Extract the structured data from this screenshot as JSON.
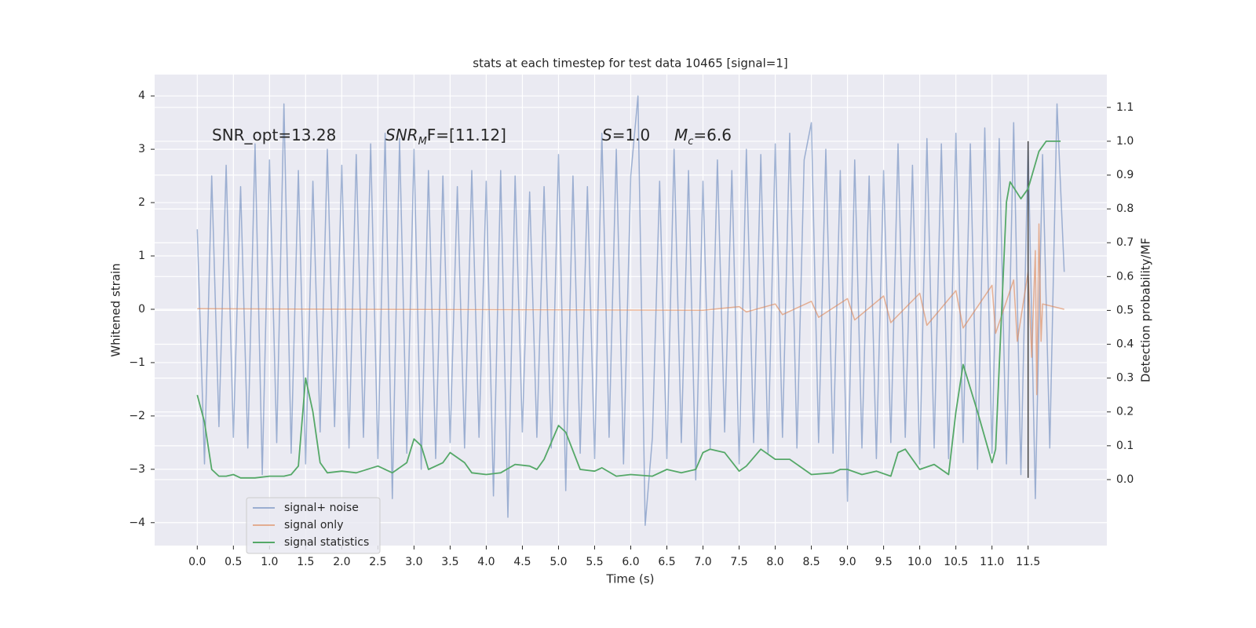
{
  "chart_data": {
    "type": "line",
    "title": "stats at each timestep for test data 10465 [signal=1]",
    "xlabel": "Time (s)",
    "ylabel": "Whitened strain",
    "y2label": "Detection probability/MF",
    "xlim": [
      -0.59,
      12.59
    ],
    "ylim": [
      -4.43,
      4.4
    ],
    "y2lim": [
      -0.195,
      1.197
    ],
    "xticks": [
      {
        "value": 0,
        "label": "0.0"
      },
      0.5,
      {
        "value": 1,
        "label": "1.0"
      },
      1.5,
      {
        "value": 2,
        "label": "2.0"
      },
      2.5,
      {
        "value": 3,
        "label": "3.0"
      },
      3.5,
      {
        "value": 4,
        "label": "4.0"
      },
      4.5,
      {
        "value": 5,
        "label": "5.0"
      },
      5.5,
      {
        "value": 6,
        "label": "6.0"
      },
      6.5,
      {
        "value": 7,
        "label": "7.0"
      },
      7.5,
      {
        "value": 8,
        "label": "8.0"
      },
      8.5,
      {
        "value": 9,
        "label": "9.0"
      },
      9.5,
      {
        "value": 10,
        "label": "10.0"
      },
      10.5,
      {
        "value": 11,
        "label": "11.0"
      },
      11.5
    ],
    "yticks": [
      {
        "value": -4,
        "label": "−4"
      },
      {
        "value": -3,
        "label": "−3"
      },
      {
        "value": -2,
        "label": "−2"
      },
      {
        "value": -1,
        "label": "−1"
      },
      0,
      1,
      2,
      3,
      4
    ],
    "y2ticks": [
      {
        "value": 0,
        "label": "0.0"
      },
      0.1,
      0.2,
      0.3,
      0.4,
      0.5,
      0.6,
      0.7,
      0.8,
      0.9,
      {
        "value": 1,
        "label": "1.0"
      },
      1.1
    ],
    "grid": true,
    "legend": "lower left",
    "background": "#eaeaf2",
    "vline": 11.5,
    "vline_color": "#444444",
    "annotations": [
      {
        "text": "SNR_opt=13.28",
        "italic": false
      },
      {
        "text": "SNR",
        "sub": "M",
        "rest": "F=[11.12]",
        "italic": true
      },
      {
        "text": "S",
        "rest": "=1.0",
        "italic": true
      },
      {
        "text": "M",
        "sub": "c",
        "rest": "=6.6",
        "italic": true
      }
    ],
    "series": [
      {
        "name": "signal+ noise",
        "color": "#4c72b0",
        "alpha": 0.5,
        "x": [
          0.0,
          0.1,
          0.2,
          0.3,
          0.4,
          0.5,
          0.6,
          0.7,
          0.8,
          0.9,
          1.0,
          1.1,
          1.2,
          1.3,
          1.4,
          1.5,
          1.6,
          1.7,
          1.8,
          1.9,
          2.0,
          2.1,
          2.2,
          2.3,
          2.4,
          2.5,
          2.6,
          2.7,
          2.8,
          2.9,
          3.0,
          3.1,
          3.2,
          3.3,
          3.4,
          3.5,
          3.6,
          3.7,
          3.8,
          3.9,
          4.0,
          4.1,
          4.2,
          4.3,
          4.4,
          4.5,
          4.6,
          4.7,
          4.8,
          4.9,
          5.0,
          5.1,
          5.2,
          5.3,
          5.4,
          5.5,
          5.6,
          5.7,
          5.8,
          5.9,
          6.0,
          6.1,
          6.2,
          6.3,
          6.4,
          6.5,
          6.6,
          6.7,
          6.8,
          6.9,
          7.0,
          7.1,
          7.2,
          7.3,
          7.4,
          7.5,
          7.6,
          7.7,
          7.8,
          7.9,
          8.0,
          8.1,
          8.2,
          8.3,
          8.4,
          8.5,
          8.6,
          8.7,
          8.8,
          8.9,
          9.0,
          9.1,
          9.2,
          9.3,
          9.4,
          9.5,
          9.6,
          9.7,
          9.8,
          9.9,
          10.0,
          10.1,
          10.2,
          10.3,
          10.4,
          10.5,
          10.6,
          10.7,
          10.8,
          10.9,
          11.0,
          11.1,
          11.2,
          11.3,
          11.4,
          11.5,
          11.6,
          11.7,
          11.8,
          11.9,
          12.0
        ],
        "values": [
          1.5,
          -2.9,
          2.5,
          -2.2,
          2.7,
          -2.4,
          2.3,
          -2.6,
          3.1,
          -3.1,
          2.8,
          -2.5,
          3.85,
          -2.7,
          2.6,
          -2.9,
          2.4,
          -2.3,
          3.0,
          -2.2,
          2.7,
          -2.6,
          2.9,
          -2.4,
          3.1,
          -2.8,
          3.3,
          -3.55,
          3.2,
          -2.7,
          3.0,
          -3.0,
          2.6,
          -2.8,
          2.5,
          -2.5,
          2.3,
          -2.6,
          2.6,
          -2.4,
          2.4,
          -3.5,
          2.6,
          -3.9,
          2.5,
          -2.3,
          2.2,
          -2.4,
          2.3,
          -2.6,
          2.9,
          -3.4,
          2.5,
          -2.7,
          2.3,
          -2.8,
          3.3,
          -2.4,
          3.0,
          -2.9,
          2.5,
          4.0,
          -4.05,
          -2.4,
          2.4,
          -2.8,
          3.0,
          -2.5,
          2.6,
          -3.2,
          2.4,
          -2.6,
          2.8,
          -2.3,
          2.6,
          -2.9,
          3.0,
          -2.5,
          2.9,
          -2.7,
          3.1,
          -2.4,
          3.3,
          -2.6,
          2.8,
          3.5,
          -2.5,
          3.0,
          -2.7,
          2.6,
          -3.6,
          2.8,
          -2.6,
          2.5,
          -2.8,
          2.6,
          -2.5,
          3.1,
          -2.4,
          2.7,
          -2.9,
          3.2,
          -2.6,
          3.1,
          -2.8,
          3.3,
          -2.5,
          3.1,
          -3.0,
          3.4,
          -2.7,
          3.2,
          -2.9,
          3.5,
          -3.1,
          3.1,
          -3.55,
          2.9,
          -2.6,
          3.85,
          0.7
        ]
      },
      {
        "name": "signal only",
        "color": "#dd8452",
        "alpha": 0.6,
        "x": [
          0.0,
          7.0,
          7.5,
          7.6,
          8.0,
          8.1,
          8.5,
          8.6,
          9.0,
          9.1,
          9.5,
          9.6,
          10.0,
          10.1,
          10.5,
          10.6,
          11.0,
          11.05,
          11.3,
          11.35,
          11.5,
          11.55,
          11.6,
          11.62,
          11.65,
          11.68,
          11.7,
          12.0
        ],
        "values": [
          0.01,
          -0.02,
          0.05,
          -0.05,
          0.1,
          -0.1,
          0.15,
          -0.15,
          0.2,
          -0.2,
          0.25,
          -0.25,
          0.3,
          -0.3,
          0.35,
          -0.35,
          0.45,
          -0.45,
          0.55,
          -0.6,
          0.7,
          -0.9,
          1.1,
          -1.6,
          1.6,
          -0.6,
          0.1,
          0.0
        ]
      },
      {
        "name": "signal statistics",
        "color": "#55a868",
        "alpha": 1,
        "axis": "y2",
        "x": [
          0.0,
          0.1,
          0.2,
          0.3,
          0.4,
          0.5,
          0.6,
          0.8,
          1.0,
          1.2,
          1.3,
          1.4,
          1.5,
          1.6,
          1.7,
          1.8,
          2.0,
          2.2,
          2.5,
          2.7,
          2.9,
          3.0,
          3.1,
          3.2,
          3.4,
          3.5,
          3.7,
          3.8,
          4.0,
          4.2,
          4.4,
          4.6,
          4.7,
          4.8,
          5.0,
          5.1,
          5.3,
          5.5,
          5.6,
          5.8,
          6.0,
          6.3,
          6.5,
          6.7,
          6.9,
          7.0,
          7.1,
          7.3,
          7.5,
          7.6,
          7.8,
          8.0,
          8.2,
          8.5,
          8.8,
          8.9,
          9.0,
          9.2,
          9.4,
          9.6,
          9.7,
          9.8,
          10.0,
          10.2,
          10.4,
          10.5,
          10.6,
          10.8,
          11.0,
          11.05,
          11.2,
          11.25,
          11.4,
          11.5,
          11.65,
          11.75,
          11.95
        ],
        "values": [
          0.25,
          0.17,
          0.03,
          0.01,
          0.01,
          0.015,
          0.005,
          0.005,
          0.01,
          0.01,
          0.015,
          0.04,
          0.3,
          0.2,
          0.05,
          0.02,
          0.025,
          0.02,
          0.04,
          0.02,
          0.05,
          0.12,
          0.1,
          0.03,
          0.05,
          0.08,
          0.05,
          0.02,
          0.015,
          0.02,
          0.045,
          0.04,
          0.03,
          0.06,
          0.16,
          0.14,
          0.03,
          0.025,
          0.035,
          0.01,
          0.015,
          0.01,
          0.03,
          0.02,
          0.03,
          0.08,
          0.09,
          0.08,
          0.025,
          0.04,
          0.09,
          0.06,
          0.06,
          0.015,
          0.02,
          0.03,
          0.03,
          0.015,
          0.025,
          0.01,
          0.08,
          0.09,
          0.03,
          0.045,
          0.015,
          0.2,
          0.34,
          0.2,
          0.05,
          0.09,
          0.82,
          0.88,
          0.83,
          0.86,
          0.97,
          1.0,
          1.0
        ]
      }
    ]
  }
}
